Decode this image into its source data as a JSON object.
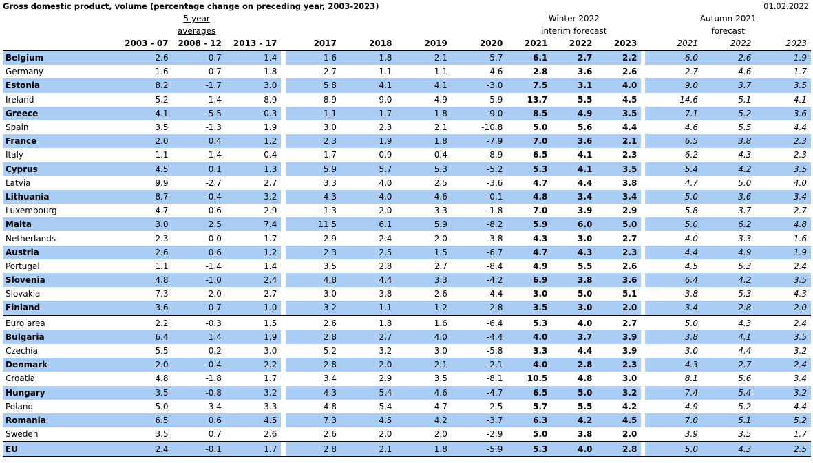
{
  "title": "Gross domestic product, volume (percentage change on preceding year, 2003-2023)",
  "date": "01.02.2022",
  "headers": {
    "five_year_line1": "5-year",
    "five_year_line2": "averages",
    "winter_line1": "Winter 2022",
    "winter_line2": "interim forecast",
    "autumn_line1": "Autumn 2021",
    "autumn_line2": "forecast",
    "columns": [
      "2003 - 07",
      "2008 - 12",
      "2013 - 17",
      "2017",
      "2018",
      "2019",
      "2020",
      "2021",
      "2022",
      "2023",
      "2021",
      "2022",
      "2023"
    ]
  },
  "rows": [
    {
      "country": "Belgium",
      "v": [
        "2.6",
        "0.7",
        "1.4",
        "1.6",
        "1.8",
        "2.1",
        "-5.7",
        "6.1",
        "2.7",
        "2.2",
        "6.0",
        "2.6",
        "1.9"
      ]
    },
    {
      "country": "Germany",
      "v": [
        "1.6",
        "0.7",
        "1.8",
        "2.7",
        "1.1",
        "1.1",
        "-4.6",
        "2.8",
        "3.6",
        "2.6",
        "2.7",
        "4.6",
        "1.7"
      ]
    },
    {
      "country": "Estonia",
      "v": [
        "8.2",
        "-1.7",
        "3.0",
        "5.8",
        "4.1",
        "4.1",
        "-3.0",
        "7.5",
        "3.1",
        "4.0",
        "9.0",
        "3.7",
        "3.5"
      ]
    },
    {
      "country": "Ireland",
      "v": [
        "5.2",
        "-1.4",
        "8.9",
        "8.9",
        "9.0",
        "4.9",
        "5.9",
        "13.7",
        "5.5",
        "4.5",
        "14.6",
        "5.1",
        "4.1"
      ]
    },
    {
      "country": "Greece",
      "v": [
        "4.1",
        "-5.5",
        "-0.3",
        "1.1",
        "1.7",
        "1.8",
        "-9.0",
        "8.5",
        "4.9",
        "3.5",
        "7.1",
        "5.2",
        "3.6"
      ]
    },
    {
      "country": "Spain",
      "v": [
        "3.5",
        "-1.3",
        "1.9",
        "3.0",
        "2.3",
        "2.1",
        "-10.8",
        "5.0",
        "5.6",
        "4.4",
        "4.6",
        "5.5",
        "4.4"
      ]
    },
    {
      "country": "France",
      "v": [
        "2.0",
        "0.4",
        "1.2",
        "2.3",
        "1.9",
        "1.8",
        "-7.9",
        "7.0",
        "3.6",
        "2.1",
        "6.5",
        "3.8",
        "2.3"
      ]
    },
    {
      "country": "Italy",
      "v": [
        "1.1",
        "-1.4",
        "0.4",
        "1.7",
        "0.9",
        "0.4",
        "-8.9",
        "6.5",
        "4.1",
        "2.3",
        "6.2",
        "4.3",
        "2.3"
      ]
    },
    {
      "country": "Cyprus",
      "v": [
        "4.5",
        "0.1",
        "1.3",
        "5.9",
        "5.7",
        "5.3",
        "-5.2",
        "5.3",
        "4.1",
        "3.5",
        "5.4",
        "4.2",
        "3.5"
      ]
    },
    {
      "country": "Latvia",
      "v": [
        "9.9",
        "-2.7",
        "2.7",
        "3.3",
        "4.0",
        "2.5",
        "-3.6",
        "4.7",
        "4.4",
        "3.8",
        "4.7",
        "5.0",
        "4.0"
      ]
    },
    {
      "country": "Lithuania",
      "v": [
        "8.7",
        "-0.4",
        "3.2",
        "4.3",
        "4.0",
        "4.6",
        "-0.1",
        "4.8",
        "3.4",
        "3.4",
        "5.0",
        "3.6",
        "3.4"
      ]
    },
    {
      "country": "Luxembourg",
      "v": [
        "4.7",
        "0.6",
        "2.9",
        "1.3",
        "2.0",
        "3.3",
        "-1.8",
        "7.0",
        "3.9",
        "2.9",
        "5.8",
        "3.7",
        "2.7"
      ]
    },
    {
      "country": "Malta",
      "v": [
        "3.0",
        "2.5",
        "7.4",
        "11.5",
        "6.1",
        "5.9",
        "-8.2",
        "5.9",
        "6.0",
        "5.0",
        "5.0",
        "6.2",
        "4.8"
      ]
    },
    {
      "country": "Netherlands",
      "v": [
        "2.3",
        "0.0",
        "1.7",
        "2.9",
        "2.4",
        "2.0",
        "-3.8",
        "4.3",
        "3.0",
        "2.7",
        "4.0",
        "3.3",
        "1.6"
      ]
    },
    {
      "country": "Austria",
      "v": [
        "2.6",
        "0.6",
        "1.2",
        "2.3",
        "2.5",
        "1.5",
        "-6.7",
        "4.7",
        "4.3",
        "2.3",
        "4.4",
        "4.9",
        "1.9"
      ]
    },
    {
      "country": "Portugal",
      "v": [
        "1.1",
        "-1.4",
        "1.4",
        "3.5",
        "2.8",
        "2.7",
        "-8.4",
        "4.9",
        "5.5",
        "2.6",
        "4.5",
        "5.3",
        "2.4"
      ]
    },
    {
      "country": "Slovenia",
      "v": [
        "4.8",
        "-1.0",
        "2.4",
        "4.8",
        "4.4",
        "3.3",
        "-4.2",
        "6.9",
        "3.8",
        "3.6",
        "6.4",
        "4.2",
        "3.5"
      ]
    },
    {
      "country": "Slovakia",
      "v": [
        "7.3",
        "2.0",
        "2.7",
        "3.0",
        "3.8",
        "2.6",
        "-4.4",
        "3.0",
        "5.0",
        "5.1",
        "3.8",
        "5.3",
        "4.3"
      ]
    },
    {
      "country": "Finland",
      "v": [
        "3.6",
        "-0.7",
        "1.0",
        "3.2",
        "1.1",
        "1.2",
        "-2.8",
        "3.5",
        "3.0",
        "2.0",
        "3.4",
        "2.8",
        "2.0"
      ]
    },
    {
      "country": "Euro area",
      "v": [
        "2.2",
        "-0.3",
        "1.5",
        "2.6",
        "1.8",
        "1.6",
        "-6.4",
        "5.3",
        "4.0",
        "2.7",
        "5.0",
        "4.3",
        "2.4"
      ]
    },
    {
      "country": "Bulgaria",
      "v": [
        "6.4",
        "1.4",
        "1.9",
        "2.8",
        "2.7",
        "4.0",
        "-4.4",
        "4.0",
        "3.7",
        "3.9",
        "3.8",
        "4.1",
        "3.5"
      ]
    },
    {
      "country": "Czechia",
      "v": [
        "5.5",
        "0.2",
        "3.0",
        "5.2",
        "3.2",
        "3.0",
        "-5.8",
        "3.3",
        "4.4",
        "3.9",
        "3.0",
        "4.4",
        "3.2"
      ]
    },
    {
      "country": "Denmark",
      "v": [
        "2.0",
        "-0.4",
        "2.2",
        "2.8",
        "2.0",
        "2.1",
        "-2.1",
        "4.0",
        "2.8",
        "2.3",
        "4.3",
        "2.7",
        "2.4"
      ]
    },
    {
      "country": "Croatia",
      "v": [
        "4.8",
        "-1.8",
        "1.7",
        "3.4",
        "2.9",
        "3.5",
        "-8.1",
        "10.5",
        "4.8",
        "3.0",
        "8.1",
        "5.6",
        "3.4"
      ]
    },
    {
      "country": "Hungary",
      "v": [
        "3.5",
        "-0.8",
        "3.2",
        "4.3",
        "5.4",
        "4.6",
        "-4.7",
        "6.5",
        "5.0",
        "3.2",
        "7.4",
        "5.4",
        "3.2"
      ]
    },
    {
      "country": "Poland",
      "v": [
        "5.0",
        "3.4",
        "3.3",
        "4.8",
        "5.4",
        "4.7",
        "-2.5",
        "5.7",
        "5.5",
        "4.2",
        "4.9",
        "5.2",
        "4.4"
      ]
    },
    {
      "country": "Romania",
      "v": [
        "6.5",
        "0.6",
        "4.5",
        "7.3",
        "4.5",
        "4.2",
        "-3.7",
        "6.3",
        "4.2",
        "4.5",
        "7.0",
        "5.1",
        "5.2"
      ]
    },
    {
      "country": "Sweden",
      "v": [
        "3.5",
        "0.7",
        "2.6",
        "2.6",
        "2.0",
        "2.0",
        "-2.9",
        "5.0",
        "3.8",
        "2.0",
        "3.9",
        "3.5",
        "1.7"
      ]
    },
    {
      "country": "EU",
      "v": [
        "2.4",
        "-0.1",
        "1.7",
        "2.8",
        "2.1",
        "1.8",
        "-5.9",
        "5.3",
        "4.0",
        "2.8",
        "5.0",
        "4.3",
        "2.5"
      ]
    }
  ],
  "colors": {
    "row_highlight": "#a9cdf5"
  }
}
